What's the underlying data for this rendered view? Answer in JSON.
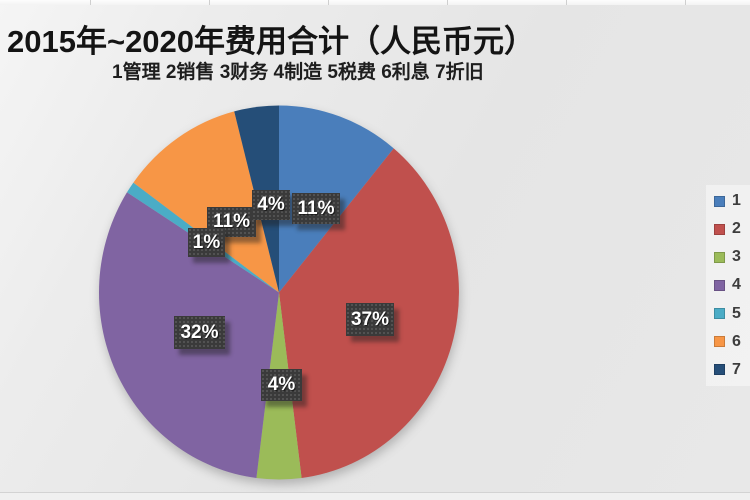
{
  "title": "2015年~2020年费用合计（人民币元）",
  "subtitle": "1管理 2销售 3财务 4制造 5税费 6利息 7折旧",
  "chart_data": {
    "type": "pie",
    "title": "2015年~2020年费用合计（人民币元）",
    "subtitle": "1管理 2销售 3财务 4制造 5税费 6利息 7折旧",
    "unit": "人民币元",
    "start_angle_deg_from_top": 0,
    "direction": "clockwise",
    "legend_position": "right",
    "categories": [
      "1管理",
      "2销售",
      "3财务",
      "4制造",
      "5税费",
      "6利息",
      "7折旧"
    ],
    "values": [
      11,
      37,
      4,
      32,
      1,
      11,
      4
    ],
    "slices": [
      {
        "id": "1",
        "name": "管理",
        "value": 11,
        "label": "11%",
        "color": "#4A7EBB"
      },
      {
        "id": "2",
        "name": "销售",
        "value": 37,
        "label": "37%",
        "color": "#C0504D"
      },
      {
        "id": "3",
        "name": "财务",
        "value": 4,
        "label": "4%",
        "color": "#9BBB59"
      },
      {
        "id": "4",
        "name": "制造",
        "value": 32,
        "label": "32%",
        "color": "#8064A2"
      },
      {
        "id": "5",
        "name": "税费",
        "value": 1,
        "label": "1%",
        "color": "#4BACC6"
      },
      {
        "id": "6",
        "name": "利息",
        "value": 11,
        "label": "11%",
        "color": "#F79646"
      },
      {
        "id": "7",
        "name": "折旧",
        "value": 4,
        "label": "4%",
        "color": "#254E78"
      }
    ]
  }
}
